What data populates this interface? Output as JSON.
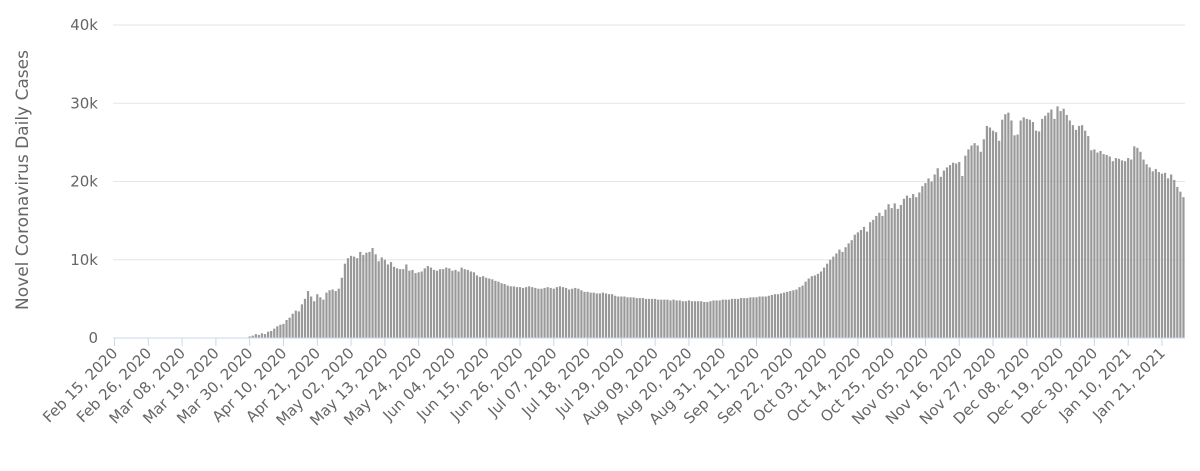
{
  "chart_data": {
    "type": "bar",
    "y_label": "Novel Coronavirus Daily Cases",
    "color": "#999999",
    "grid": true,
    "ylim": [
      0,
      40000
    ],
    "yticks": [
      0,
      {
        "value": 10000,
        "label": "10k"
      },
      {
        "value": 20000,
        "label": "20k"
      },
      {
        "value": 30000,
        "label": "30k"
      },
      {
        "value": 40000,
        "label": "40k"
      }
    ],
    "categories": [
      "Feb 15, 2020",
      null,
      null,
      null,
      null,
      null,
      null,
      null,
      null,
      null,
      null,
      "Feb 26, 2020",
      null,
      null,
      null,
      null,
      null,
      null,
      null,
      null,
      null,
      null,
      "Mar 08, 2020",
      null,
      null,
      null,
      null,
      null,
      null,
      null,
      null,
      null,
      null,
      "Mar 19, 2020",
      null,
      null,
      null,
      null,
      null,
      null,
      null,
      null,
      null,
      null,
      "Mar 30, 2020",
      null,
      null,
      null,
      null,
      null,
      null,
      null,
      null,
      null,
      null,
      "Apr 10, 2020",
      null,
      null,
      null,
      null,
      null,
      null,
      null,
      null,
      null,
      null,
      "Apr 21, 2020",
      null,
      null,
      null,
      null,
      null,
      null,
      null,
      null,
      null,
      null,
      "May 02, 2020",
      null,
      null,
      null,
      null,
      null,
      null,
      null,
      null,
      null,
      null,
      "May 13, 2020",
      null,
      null,
      null,
      null,
      null,
      null,
      null,
      null,
      null,
      null,
      "May 24, 2020",
      null,
      null,
      null,
      null,
      null,
      null,
      null,
      null,
      null,
      null,
      "Jun 04, 2020",
      null,
      null,
      null,
      null,
      null,
      null,
      null,
      null,
      null,
      null,
      "Jun 15, 2020",
      null,
      null,
      null,
      null,
      null,
      null,
      null,
      null,
      null,
      null,
      "Jun 26, 2020",
      null,
      null,
      null,
      null,
      null,
      null,
      null,
      null,
      null,
      null,
      "Jul 07, 2020",
      null,
      null,
      null,
      null,
      null,
      null,
      null,
      null,
      null,
      null,
      "Jul 18, 2020",
      null,
      null,
      null,
      null,
      null,
      null,
      null,
      null,
      null,
      null,
      "Jul 29, 2020",
      null,
      null,
      null,
      null,
      null,
      null,
      null,
      null,
      null,
      null,
      "Aug 09, 2020",
      null,
      null,
      null,
      null,
      null,
      null,
      null,
      null,
      null,
      null,
      "Aug 20, 2020",
      null,
      null,
      null,
      null,
      null,
      null,
      null,
      null,
      null,
      null,
      "Aug 31, 2020",
      null,
      null,
      null,
      null,
      null,
      null,
      null,
      null,
      null,
      null,
      "Sep 11, 2020",
      null,
      null,
      null,
      null,
      null,
      null,
      null,
      null,
      null,
      null,
      "Sep 22, 2020",
      null,
      null,
      null,
      null,
      null,
      null,
      null,
      null,
      null,
      null,
      "Oct 03, 2020",
      null,
      null,
      null,
      null,
      null,
      null,
      null,
      null,
      null,
      null,
      "Oct 14, 2020",
      null,
      null,
      null,
      null,
      null,
      null,
      null,
      null,
      null,
      null,
      "Oct 25, 2020",
      null,
      null,
      null,
      null,
      null,
      null,
      null,
      null,
      null,
      null,
      "Nov 05, 2020",
      null,
      null,
      null,
      null,
      null,
      null,
      null,
      null,
      null,
      null,
      "Nov 16, 2020",
      null,
      null,
      null,
      null,
      null,
      null,
      null,
      null,
      null,
      null,
      "Nov 27, 2020",
      null,
      null,
      null,
      null,
      null,
      null,
      null,
      null,
      null,
      null,
      "Dec 08, 2020",
      null,
      null,
      null,
      null,
      null,
      null,
      null,
      null,
      null,
      null,
      "Dec 19, 2020",
      null,
      null,
      null,
      null,
      null,
      null,
      null,
      null,
      null,
      null,
      "Dec 30, 2020",
      null,
      null,
      null,
      null,
      null,
      null,
      null,
      null,
      null,
      null,
      "Jan 10, 2021",
      null,
      null,
      null,
      null,
      null,
      null,
      null,
      null,
      null,
      null,
      "Jan 21, 2021",
      null,
      null,
      null,
      null,
      null,
      null,
      null
    ],
    "values": [
      0,
      0,
      0,
      0,
      0,
      0,
      0,
      0,
      0,
      0,
      0,
      0,
      0,
      0,
      0,
      0,
      0,
      0,
      0,
      0,
      0,
      0,
      0,
      0,
      0,
      0,
      0,
      0,
      0,
      0,
      0,
      0,
      0,
      0,
      0,
      0,
      0,
      0,
      0,
      0,
      0,
      0,
      0,
      0,
      200,
      300,
      500,
      400,
      600,
      500,
      800,
      900,
      1200,
      1500,
      1700,
      1800,
      2300,
      2600,
      3100,
      3500,
      3400,
      4300,
      5000,
      6000,
      5300,
      4700,
      5600,
      5200,
      4900,
      5800,
      6100,
      6200,
      6000,
      6300,
      7700,
      9500,
      10200,
      10500,
      10400,
      10200,
      11000,
      10600,
      10900,
      11000,
      11500,
      10700,
      9800,
      10300,
      10000,
      9400,
      9700,
      9100,
      8900,
      8800,
      8800,
      9400,
      8600,
      8700,
      8300,
      8400,
      8500,
      8900,
      9200,
      9000,
      8700,
      8600,
      8800,
      8800,
      9000,
      8900,
      8600,
      8700,
      8500,
      9000,
      8800,
      8700,
      8500,
      8400,
      8000,
      7800,
      7900,
      7700,
      7600,
      7500,
      7300,
      7200,
      7000,
      6900,
      6700,
      6600,
      6600,
      6500,
      6500,
      6400,
      6500,
      6600,
      6500,
      6400,
      6300,
      6300,
      6400,
      6500,
      6400,
      6300,
      6500,
      6600,
      6500,
      6400,
      6200,
      6300,
      6400,
      6300,
      6100,
      5900,
      5900,
      5800,
      5800,
      5700,
      5700,
      5800,
      5700,
      5600,
      5600,
      5400,
      5300,
      5300,
      5300,
      5200,
      5200,
      5200,
      5100,
      5100,
      5100,
      5000,
      5000,
      5000,
      5000,
      4900,
      4900,
      4900,
      4900,
      4800,
      4900,
      4800,
      4800,
      4700,
      4700,
      4800,
      4700,
      4700,
      4700,
      4700,
      4600,
      4600,
      4700,
      4800,
      4800,
      4800,
      4900,
      4900,
      4900,
      5000,
      5000,
      5000,
      5100,
      5100,
      5100,
      5200,
      5200,
      5200,
      5300,
      5300,
      5300,
      5400,
      5500,
      5600,
      5600,
      5700,
      5800,
      5900,
      6000,
      6100,
      6200,
      6500,
      6700,
      7200,
      7600,
      7900,
      8000,
      8200,
      8500,
      9000,
      9500,
      10000,
      10400,
      10800,
      11300,
      11000,
      11600,
      12100,
      12500,
      13200,
      13500,
      13800,
      14200,
      13600,
      14800,
      15100,
      15600,
      16000,
      15600,
      16400,
      17100,
      16600,
      17200,
      16500,
      17000,
      17800,
      18200,
      17900,
      18400,
      18000,
      18600,
      19400,
      19800,
      20400,
      20000,
      20900,
      21700,
      20600,
      21400,
      21800,
      22100,
      22400,
      22300,
      22500,
      20700,
      23300,
      24100,
      24600,
      24900,
      24600,
      23800,
      25400,
      27100,
      26900,
      26500,
      26300,
      25200,
      27900,
      28600,
      28800,
      27800,
      25900,
      26000,
      27800,
      28200,
      28000,
      27900,
      27600,
      26500,
      26400,
      28000,
      28400,
      28800,
      29200,
      28000,
      29600,
      29000,
      29300,
      28500,
      27800,
      27200,
      26600,
      27100,
      27200,
      26500,
      25800,
      24000,
      24100,
      23700,
      23900,
      23500,
      23400,
      23200,
      22600,
      23000,
      22900,
      22700,
      22600,
      23000,
      22800,
      24500,
      24300,
      23800,
      22800,
      22200,
      21800,
      21300,
      21600,
      21200,
      21000,
      21100,
      20400,
      20900,
      20200,
      19300,
      18700,
      18000
    ]
  }
}
